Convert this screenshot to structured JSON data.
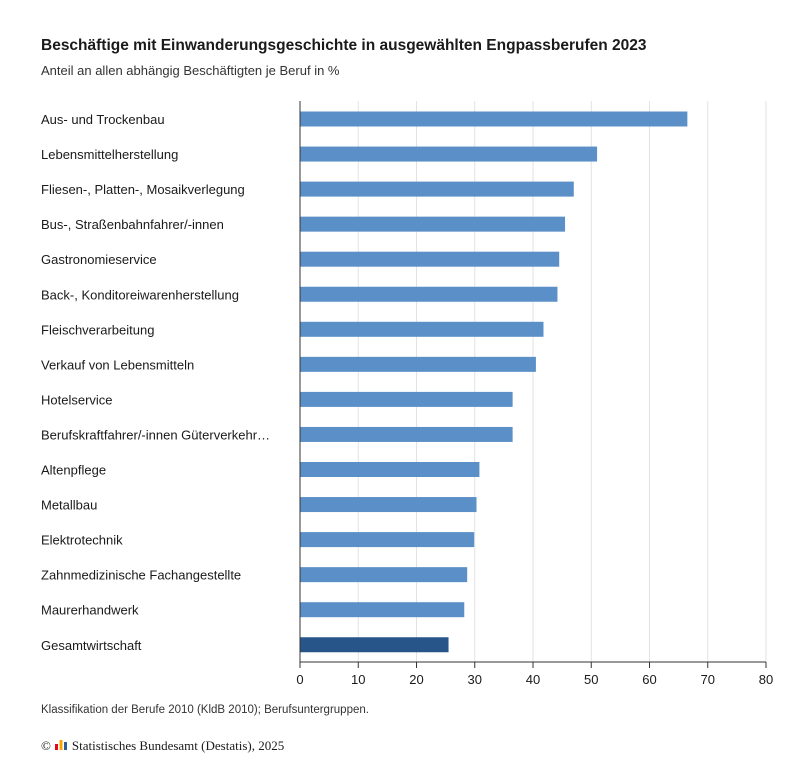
{
  "header": {
    "title": "Beschäftige mit Einwanderungsgeschichte in ausgewählten Engpassberufen 2023",
    "subtitle": "Anteil an allen abhängig Beschäftigten je Beruf in %"
  },
  "footer": {
    "note": "Klassifikation der Berufe 2010 (KldB 2010); Berufsuntergruppen.",
    "copyright_symbol": "©",
    "source": "Statistisches Bundesamt (Destatis), 2025",
    "logo_icon": "destatis-logo-icon"
  },
  "colors": {
    "bar": "#5b8fc7",
    "highlight_bar": "#27558a",
    "grid": "#e2e2e2",
    "axis": "#333333"
  },
  "chart_data": {
    "type": "bar",
    "orientation": "horizontal",
    "title": "Beschäftige mit Einwanderungsgeschichte in ausgewählten Engpassberufen 2023",
    "subtitle": "Anteil an allen abhängig Beschäftigten je Beruf in %",
    "categories": [
      "Aus- und Trockenbau",
      "Lebensmittelherstellung",
      "Fliesen-, Platten-, Mosaikverlegung",
      "Bus-, Straßenbahnfahrer/-innen",
      "Gastronomieservice",
      "Back-, Konditoreiwarenherstellung",
      "Fleischverarbeitung",
      "Verkauf von Lebensmitteln",
      "Hotelservice",
      "Berufskraftfahrer/-innen Güterverkehr…",
      "Altenpflege",
      "Metallbau",
      "Elektrotechnik",
      "Zahnmedizinische Fachangestellte",
      "Maurerhandwerk",
      "Gesamtwirtschaft"
    ],
    "values": [
      66.5,
      51.0,
      47.0,
      45.5,
      44.5,
      44.2,
      41.8,
      40.5,
      36.5,
      36.5,
      30.8,
      30.3,
      29.9,
      28.7,
      28.2,
      25.5
    ],
    "highlight": "Gesamtwirtschaft",
    "xlim": [
      0,
      80
    ],
    "xticks": [
      "0",
      "10",
      "20",
      "30",
      "40",
      "50",
      "60",
      "70",
      "80"
    ],
    "xlabel": "",
    "ylabel": "",
    "grid": true
  }
}
